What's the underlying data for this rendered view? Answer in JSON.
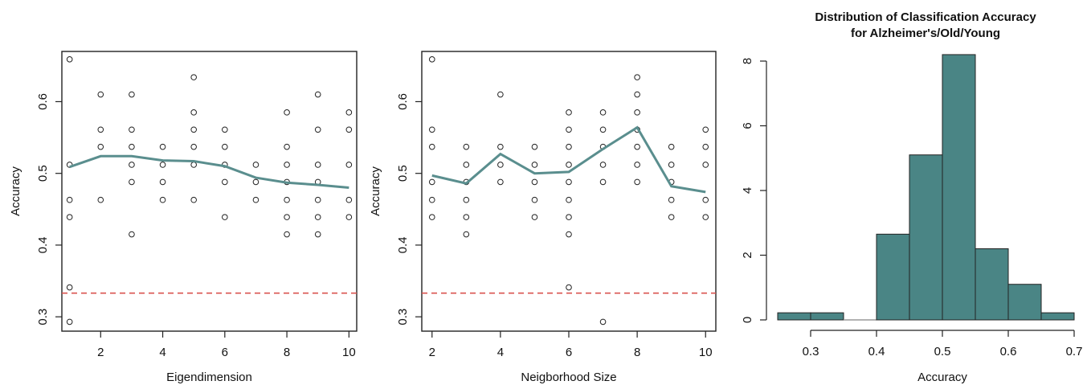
{
  "chart_data": [
    {
      "type": "scatter",
      "title": "",
      "xlabel": "Eigendimension",
      "ylabel": "Accuracy",
      "xlim": [
        0.75,
        10.25
      ],
      "ylim": [
        0.28,
        0.67
      ],
      "xticks": [
        2,
        4,
        6,
        8,
        10
      ],
      "yticks": [
        0.3,
        0.4,
        0.5,
        0.6
      ],
      "xtick_labels": [
        "2",
        "4",
        "6",
        "8",
        "10"
      ],
      "ytick_labels": [
        "0.3",
        "0.4",
        "0.5",
        "0.6"
      ],
      "points": [
        [
          1,
          0.659
        ],
        [
          1,
          0.512
        ],
        [
          1,
          0.463
        ],
        [
          1,
          0.439
        ],
        [
          1,
          0.341
        ],
        [
          1,
          0.293
        ],
        [
          2,
          0.61
        ],
        [
          2,
          0.561
        ],
        [
          2,
          0.537
        ],
        [
          2,
          0.463
        ],
        [
          3,
          0.61
        ],
        [
          3,
          0.561
        ],
        [
          3,
          0.537
        ],
        [
          3,
          0.512
        ],
        [
          3,
          0.488
        ],
        [
          3,
          0.415
        ],
        [
          4,
          0.537
        ],
        [
          4,
          0.512
        ],
        [
          4,
          0.488
        ],
        [
          4,
          0.463
        ],
        [
          5,
          0.634
        ],
        [
          5,
          0.585
        ],
        [
          5,
          0.561
        ],
        [
          5,
          0.537
        ],
        [
          5,
          0.512
        ],
        [
          5,
          0.463
        ],
        [
          6,
          0.561
        ],
        [
          6,
          0.537
        ],
        [
          6,
          0.512
        ],
        [
          6,
          0.488
        ],
        [
          6,
          0.439
        ],
        [
          7,
          0.512
        ],
        [
          7,
          0.488
        ],
        [
          7,
          0.463
        ],
        [
          8,
          0.585
        ],
        [
          8,
          0.537
        ],
        [
          8,
          0.512
        ],
        [
          8,
          0.488
        ],
        [
          8,
          0.463
        ],
        [
          8,
          0.439
        ],
        [
          8,
          0.415
        ],
        [
          9,
          0.61
        ],
        [
          9,
          0.561
        ],
        [
          9,
          0.512
        ],
        [
          9,
          0.488
        ],
        [
          9,
          0.463
        ],
        [
          9,
          0.439
        ],
        [
          9,
          0.415
        ],
        [
          10,
          0.585
        ],
        [
          10,
          0.561
        ],
        [
          10,
          0.512
        ],
        [
          10,
          0.463
        ],
        [
          10,
          0.439
        ]
      ],
      "line": {
        "x": [
          1,
          2,
          3,
          4,
          5,
          6,
          7,
          8,
          9,
          10
        ],
        "y": [
          0.509,
          0.524,
          0.524,
          0.518,
          0.517,
          0.51,
          0.494,
          0.487,
          0.484,
          0.48
        ]
      },
      "hline": 0.333,
      "colors": {
        "line": "#5a8e8e",
        "hline": "#d9534f",
        "points": "#222222"
      },
      "grid": false
    },
    {
      "type": "scatter",
      "title": "",
      "xlabel": "Neigborhood Size",
      "ylabel": "Accuracy",
      "xlim": [
        1.7,
        10.3
      ],
      "ylim": [
        0.28,
        0.67
      ],
      "xticks": [
        2,
        4,
        6,
        8,
        10
      ],
      "yticks": [
        0.3,
        0.4,
        0.5,
        0.6
      ],
      "xtick_labels": [
        "2",
        "4",
        "6",
        "8",
        "10"
      ],
      "ytick_labels": [
        "0.3",
        "0.4",
        "0.5",
        "0.6"
      ],
      "points": [
        [
          2,
          0.659
        ],
        [
          2,
          0.561
        ],
        [
          2,
          0.537
        ],
        [
          2,
          0.488
        ],
        [
          2,
          0.463
        ],
        [
          2,
          0.439
        ],
        [
          3,
          0.537
        ],
        [
          3,
          0.512
        ],
        [
          3,
          0.488
        ],
        [
          3,
          0.463
        ],
        [
          3,
          0.439
        ],
        [
          3,
          0.415
        ],
        [
          4,
          0.61
        ],
        [
          4,
          0.537
        ],
        [
          4,
          0.512
        ],
        [
          4,
          0.488
        ],
        [
          5,
          0.537
        ],
        [
          5,
          0.512
        ],
        [
          5,
          0.488
        ],
        [
          5,
          0.463
        ],
        [
          5,
          0.439
        ],
        [
          6,
          0.585
        ],
        [
          6,
          0.561
        ],
        [
          6,
          0.537
        ],
        [
          6,
          0.512
        ],
        [
          6,
          0.488
        ],
        [
          6,
          0.463
        ],
        [
          6,
          0.439
        ],
        [
          6,
          0.415
        ],
        [
          6,
          0.341
        ],
        [
          7,
          0.585
        ],
        [
          7,
          0.561
        ],
        [
          7,
          0.537
        ],
        [
          7,
          0.512
        ],
        [
          7,
          0.488
        ],
        [
          7,
          0.293
        ],
        [
          8,
          0.634
        ],
        [
          8,
          0.61
        ],
        [
          8,
          0.585
        ],
        [
          8,
          0.561
        ],
        [
          8,
          0.537
        ],
        [
          8,
          0.512
        ],
        [
          8,
          0.488
        ],
        [
          9,
          0.537
        ],
        [
          9,
          0.512
        ],
        [
          9,
          0.488
        ],
        [
          9,
          0.463
        ],
        [
          9,
          0.439
        ],
        [
          10,
          0.561
        ],
        [
          10,
          0.537
        ],
        [
          10,
          0.512
        ],
        [
          10,
          0.463
        ],
        [
          10,
          0.439
        ]
      ],
      "line": {
        "x": [
          2,
          3,
          4,
          5,
          6,
          7,
          8,
          9,
          10
        ],
        "y": [
          0.497,
          0.486,
          0.527,
          0.5,
          0.502,
          0.534,
          0.564,
          0.482,
          0.474
        ]
      },
      "hline": 0.333,
      "colors": {
        "line": "#5a8e8e",
        "hline": "#d9534f",
        "points": "#222222"
      },
      "grid": false
    },
    {
      "type": "bar",
      "title": "Distribution of Classification Accuracy",
      "subtitle": "for Alzheimer's/Old/Young",
      "xlabel": "Accuracy",
      "ylabel": "",
      "xlim": [
        0.25,
        0.7
      ],
      "ylim": [
        0,
        8.3
      ],
      "xticks": [
        0.3,
        0.4,
        0.5,
        0.6,
        0.7
      ],
      "yticks": [
        0,
        2,
        4,
        6,
        8
      ],
      "xtick_labels": [
        "0.3",
        "0.4",
        "0.5",
        "0.6",
        "0.7"
      ],
      "ytick_labels": [
        "0",
        "2",
        "4",
        "6",
        "8"
      ],
      "bins": [
        [
          0.25,
          0.3,
          0.22
        ],
        [
          0.3,
          0.35,
          0.22
        ],
        [
          0.35,
          0.4,
          0
        ],
        [
          0.4,
          0.45,
          2.65
        ],
        [
          0.45,
          0.5,
          5.1
        ],
        [
          0.5,
          0.55,
          8.2
        ],
        [
          0.55,
          0.6,
          2.2
        ],
        [
          0.6,
          0.65,
          1.1
        ],
        [
          0.65,
          0.7,
          0.22
        ]
      ],
      "colors": {
        "bar": "#4a8585",
        "edge": "#222222",
        "empty_bin": "#999999"
      },
      "grid": false
    }
  ]
}
